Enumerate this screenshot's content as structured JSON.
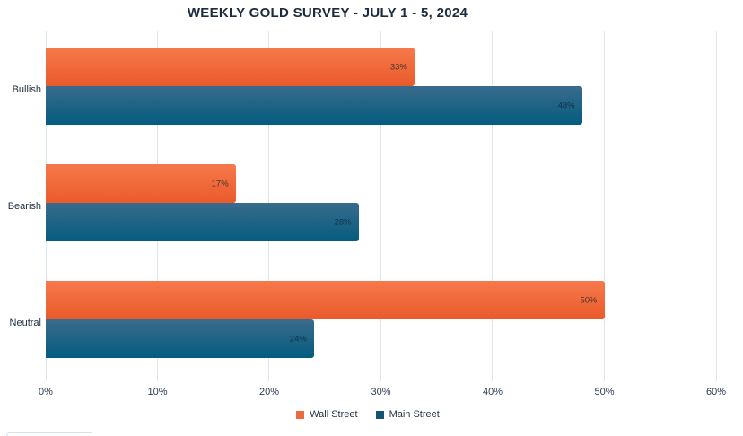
{
  "chart_data": {
    "type": "bar",
    "orientation": "horizontal",
    "title": "WEEKLY GOLD SURVEY - JULY 1 - 5, 2024",
    "title_color": "#1c2b3e",
    "categories": [
      "Bullish",
      "Bearish",
      "Neutral"
    ],
    "series": [
      {
        "name": "Wall Street",
        "values": [
          33,
          17,
          50
        ],
        "data_labels": [
          "33%",
          "17%",
          "50%"
        ],
        "bar_gradient_top": "#f6794b",
        "bar_gradient_bottom": "#ea5a2b",
        "legend_swatch_color": "#ed6a3f",
        "data_label_color": "#46342a"
      },
      {
        "name": "Main Street",
        "values": [
          48,
          28,
          24
        ],
        "data_labels": [
          "48%",
          "28%",
          "24%"
        ],
        "bar_gradient_top": "#3a6b8c",
        "bar_gradient_bottom": "#045c80",
        "legend_swatch_color": "#145672",
        "data_label_color": "#0d3247"
      }
    ],
    "x_ticks": [
      "0%",
      "10%",
      "20%",
      "30%",
      "40%",
      "50%",
      "60%"
    ],
    "xlim": [
      0,
      60
    ],
    "x_tick_color": "#2e3d4f",
    "category_label_color": "#1e2d3f",
    "gridline_color": "#dbe6ef",
    "grid": "vertical",
    "legend_position": "bottom"
  }
}
